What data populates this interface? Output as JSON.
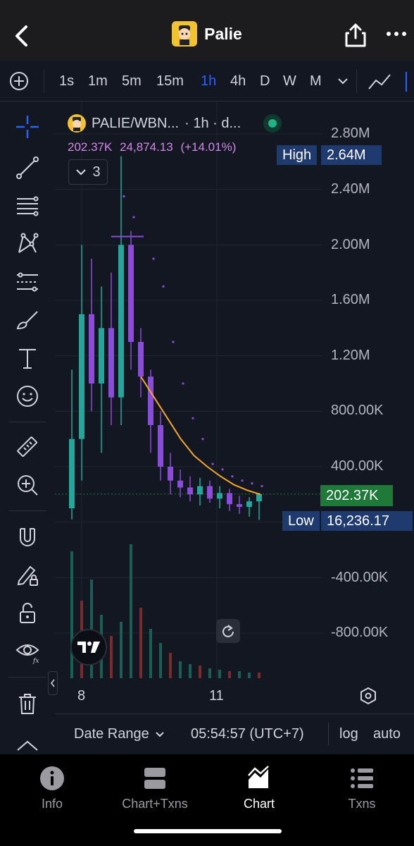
{
  "header": {
    "title": "Palie",
    "back_icon": "chevron-left-icon",
    "share_icon": "share-icon",
    "more_icon": "ellipsis-icon"
  },
  "intervals": {
    "items": [
      "1s",
      "1m",
      "5m",
      "15m",
      "1h",
      "4h",
      "D",
      "W",
      "M"
    ],
    "active": "1h"
  },
  "legend": {
    "symbol": "PALIE/WBN...",
    "detail": "· 1h · d...",
    "price": "202.37K",
    "change_abs": "24,874.13",
    "change_pct": "(+14.01%)",
    "indicators_count": "3"
  },
  "price_axis": [
    "2.80M",
    "2.40M",
    "2.00M",
    "1.60M",
    "1.20M",
    "800.00K",
    "400.00K",
    "-400.00K",
    "-800.00K"
  ],
  "tags": {
    "high_label": "High",
    "high_value": "2.64M",
    "current_value": "202.37K",
    "low_label": "Low",
    "low_value": "16,236.17"
  },
  "time_axis": [
    "8",
    "11"
  ],
  "bottom_bar": {
    "date_range": "Date Range",
    "time": "05:54:57 (UTC+7)",
    "log": "log",
    "auto": "auto"
  },
  "nav": {
    "items": [
      {
        "label": "Info",
        "icon": "info-icon"
      },
      {
        "label": "Chart+Txns",
        "icon": "split-view-icon"
      },
      {
        "label": "Chart",
        "icon": "chart-area-icon"
      },
      {
        "label": "Txns",
        "icon": "list-icon"
      }
    ],
    "active": "Chart"
  },
  "colors": {
    "up": "#26a69a",
    "down": "#8b4cd9",
    "ma": "#f5a623",
    "accent": "#2962ff",
    "bg": "#131722"
  },
  "chart_data": {
    "type": "candlestick",
    "symbol": "PALIE/WBN...",
    "interval": "1h",
    "x_ticks": [
      "8",
      "11"
    ],
    "ylim": [
      -1000000,
      3000000
    ],
    "y_ticks": [
      -800000,
      -400000,
      400000,
      800000,
      1200000,
      1600000,
      2000000,
      2400000,
      2800000
    ],
    "high": 2640000,
    "low": 16236.17,
    "last": 202370,
    "grid": true,
    "series": [
      {
        "name": "price",
        "values": [
          [
            0,
            100000,
            1100000,
            20000,
            600000
          ],
          [
            1,
            600000,
            2000000,
            300000,
            1500000
          ],
          [
            2,
            1500000,
            1900000,
            800000,
            1000000
          ],
          [
            3,
            1000000,
            1700000,
            500000,
            1400000
          ],
          [
            4,
            1400000,
            1800000,
            700000,
            900000
          ],
          [
            5,
            900000,
            2640000,
            700000,
            2000000
          ],
          [
            6,
            2000000,
            2100000,
            1100000,
            1300000
          ],
          [
            7,
            1300000,
            1400000,
            900000,
            1050000
          ],
          [
            8,
            1050000,
            1100000,
            500000,
            700000
          ],
          [
            9,
            700000,
            800000,
            300000,
            400000
          ],
          [
            10,
            400000,
            500000,
            200000,
            300000
          ],
          [
            11,
            300000,
            380000,
            180000,
            250000
          ],
          [
            12,
            250000,
            330000,
            150000,
            200000
          ],
          [
            13,
            200000,
            320000,
            120000,
            260000
          ],
          [
            14,
            260000,
            300000,
            140000,
            170000
          ],
          [
            15,
            170000,
            260000,
            100000,
            210000
          ],
          [
            16,
            210000,
            240000,
            80000,
            130000
          ],
          [
            17,
            130000,
            190000,
            60000,
            110000
          ],
          [
            18,
            110000,
            180000,
            40000,
            150000
          ],
          [
            19,
            150000,
            210000,
            16236,
            202370
          ]
        ]
      },
      {
        "name": "MA",
        "values": [
          1050000,
          900000,
          750000,
          600000,
          480000,
          400000,
          330000,
          270000,
          230000,
          200000
        ]
      }
    ]
  }
}
